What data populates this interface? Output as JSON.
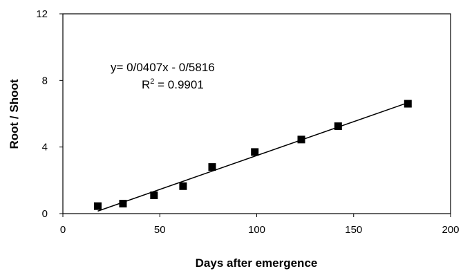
{
  "chart_data": {
    "type": "scatter",
    "xlabel": "Days after emergence",
    "ylabel": "Root / Shoot",
    "xlim": [
      0,
      200
    ],
    "ylim": [
      0,
      12
    ],
    "x_ticks": [
      "0",
      "50",
      "100",
      "150",
      "200"
    ],
    "y_ticks": [
      "0",
      "4",
      "8",
      "12"
    ],
    "grid": false,
    "series": [
      {
        "marker": "square",
        "color": "#000000",
        "points": [
          {
            "x": 18,
            "y": 0.45
          },
          {
            "x": 31,
            "y": 0.6
          },
          {
            "x": 47,
            "y": 1.1
          },
          {
            "x": 62,
            "y": 1.65
          },
          {
            "x": 77,
            "y": 2.8
          },
          {
            "x": 99,
            "y": 3.7
          },
          {
            "x": 123,
            "y": 4.45
          },
          {
            "x": 142,
            "y": 5.25
          },
          {
            "x": 178,
            "y": 6.6
          }
        ]
      }
    ],
    "trendline": {
      "type": "linear",
      "slope": 0.0407,
      "intercept": -0.5816,
      "x_range": [
        18,
        178
      ],
      "equation_label": "y= 0/0407x - 0/5816",
      "r2_prefix": "R",
      "r2_sup": "2",
      "r2_value": " = 0.9901"
    }
  }
}
